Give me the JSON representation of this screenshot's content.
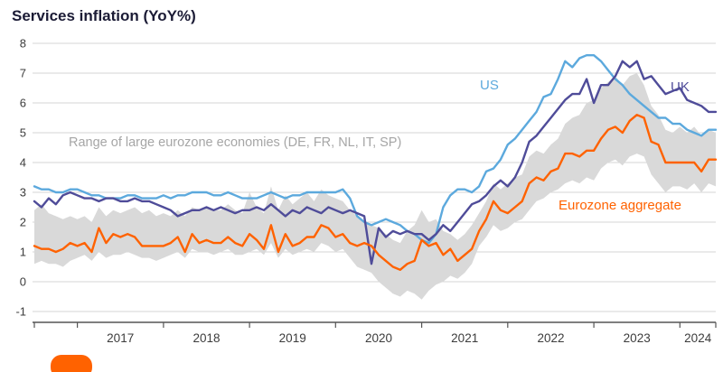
{
  "chart_data": {
    "type": "line",
    "title": "Services inflation (YoY%)",
    "x_start": "2016-07",
    "x_start_month": 7,
    "x_months": 96,
    "x_tick_labels": [
      "2017",
      "2018",
      "2019",
      "2020",
      "2021",
      "2022",
      "2023",
      "2024"
    ],
    "ylim": [
      -1,
      8
    ],
    "y_ticks": [
      -1,
      0,
      1,
      2,
      3,
      4,
      5,
      6,
      7,
      8
    ],
    "grid": "horizontal",
    "legend_position": "direct-labels-on-chart",
    "colors": {
      "grid": "#d6d6d6",
      "axis": "#555555",
      "axis_text": "#3c3c3c",
      "logo": "#ff6200"
    },
    "band": {
      "name": "Range of large eurozone economies (DE, FR, NL, IT, SP)",
      "color": "#d9d9d9",
      "min": [
        0.6,
        0.7,
        0.6,
        0.6,
        0.5,
        0.7,
        0.8,
        0.9,
        0.7,
        1.0,
        0.8,
        0.9,
        0.9,
        1.0,
        0.9,
        0.8,
        0.8,
        0.7,
        0.8,
        0.9,
        1.0,
        0.8,
        1.1,
        1.0,
        1.0,
        0.9,
        1.0,
        1.1,
        0.9,
        0.9,
        1.0,
        1.1,
        0.9,
        1.3,
        0.8,
        1.1,
        0.9,
        1.0,
        1.1,
        1.0,
        1.3,
        1.2,
        1.0,
        1.1,
        0.8,
        0.5,
        0.4,
        0.3,
        0.0,
        -0.2,
        -0.4,
        -0.5,
        -0.3,
        -0.4,
        -0.6,
        -0.3,
        -0.1,
        0.0,
        0.2,
        0.1,
        0.3,
        0.6,
        1.2,
        1.5,
        1.9,
        1.7,
        1.8,
        2.0,
        2.1,
        2.4,
        2.7,
        2.8,
        3.0,
        3.1,
        3.3,
        3.4,
        3.3,
        3.5,
        3.4,
        3.8,
        4.0,
        4.1,
        3.9,
        4.2,
        4.3,
        4.2,
        3.6,
        3.3,
        3.0,
        3.2,
        3.2,
        3.1,
        3.3,
        3.0,
        3.3,
        3.2
      ],
      "max": [
        2.4,
        2.6,
        2.3,
        2.2,
        2.1,
        2.2,
        2.1,
        2.2,
        2.0,
        2.5,
        2.2,
        2.4,
        2.3,
        2.4,
        2.5,
        2.3,
        2.4,
        2.2,
        2.3,
        2.2,
        2.4,
        2.2,
        2.5,
        2.4,
        2.5,
        2.4,
        2.4,
        2.6,
        2.4,
        2.3,
        3.0,
        2.5,
        2.3,
        3.2,
        2.4,
        2.9,
        2.6,
        2.8,
        3.0,
        2.7,
        3.1,
        2.9,
        2.8,
        2.7,
        2.4,
        2.2,
        2.0,
        1.9,
        1.8,
        1.6,
        1.4,
        1.3,
        1.7,
        1.9,
        2.4,
        2.0,
        2.1,
        1.7,
        1.6,
        1.4,
        1.6,
        1.9,
        2.3,
        2.7,
        3.3,
        3.1,
        3.3,
        3.5,
        3.6,
        4.2,
        4.4,
        4.3,
        4.6,
        4.8,
        5.3,
        5.5,
        5.6,
        6.0,
        6.1,
        6.5,
        6.7,
        6.9,
        6.6,
        6.9,
        7.0,
        6.6,
        5.9,
        5.6,
        5.1,
        5.0,
        5.2,
        5.0,
        5.2,
        4.9,
        5.1,
        5.0
      ]
    },
    "series": [
      {
        "name": "US",
        "color": "#5ca9dd",
        "values": [
          3.2,
          3.1,
          3.1,
          3.0,
          3.0,
          3.1,
          3.1,
          3.0,
          2.9,
          2.9,
          2.8,
          2.8,
          2.8,
          2.9,
          2.9,
          2.8,
          2.8,
          2.8,
          2.9,
          2.8,
          2.9,
          2.9,
          3.0,
          3.0,
          3.0,
          2.9,
          2.9,
          3.0,
          2.9,
          2.8,
          2.8,
          2.8,
          2.9,
          3.0,
          2.9,
          2.8,
          2.9,
          2.9,
          3.0,
          3.0,
          3.0,
          3.0,
          3.0,
          3.1,
          2.8,
          2.2,
          2.0,
          1.9,
          2.0,
          2.1,
          2.0,
          1.9,
          1.7,
          1.6,
          1.4,
          1.3,
          1.6,
          2.5,
          2.9,
          3.1,
          3.1,
          3.0,
          3.2,
          3.7,
          3.8,
          4.1,
          4.6,
          4.8,
          5.1,
          5.4,
          5.7,
          6.2,
          6.3,
          6.8,
          7.4,
          7.2,
          7.5,
          7.6,
          7.6,
          7.4,
          7.1,
          6.8,
          6.6,
          6.3,
          6.1,
          5.9,
          5.7,
          5.5,
          5.5,
          5.3,
          5.3,
          5.1,
          5.0,
          4.9,
          5.1,
          5.1
        ]
      },
      {
        "name": "UK",
        "color": "#4f4c99",
        "values": [
          2.7,
          2.5,
          2.8,
          2.6,
          2.9,
          3.0,
          2.9,
          2.8,
          2.8,
          2.7,
          2.8,
          2.8,
          2.7,
          2.7,
          2.8,
          2.7,
          2.7,
          2.6,
          2.5,
          2.4,
          2.2,
          2.3,
          2.4,
          2.4,
          2.5,
          2.4,
          2.5,
          2.4,
          2.3,
          2.4,
          2.4,
          2.5,
          2.4,
          2.6,
          2.4,
          2.2,
          2.4,
          2.3,
          2.5,
          2.4,
          2.3,
          2.5,
          2.4,
          2.3,
          2.4,
          2.3,
          2.2,
          0.6,
          1.8,
          1.5,
          1.7,
          1.6,
          1.7,
          1.6,
          1.6,
          1.4,
          1.6,
          1.9,
          1.7,
          2.0,
          2.3,
          2.6,
          2.7,
          2.9,
          3.2,
          3.4,
          3.2,
          3.5,
          4.0,
          4.7,
          4.9,
          5.2,
          5.5,
          5.8,
          6.1,
          6.3,
          6.3,
          6.8,
          6.0,
          6.6,
          6.6,
          6.9,
          7.4,
          7.2,
          7.4,
          6.8,
          6.9,
          6.6,
          6.3,
          6.4,
          6.5,
          6.1,
          6.0,
          5.9,
          5.7,
          5.7
        ]
      },
      {
        "name": "Eurozone aggregate",
        "color": "#ff6200",
        "values": [
          1.2,
          1.1,
          1.1,
          1.0,
          1.1,
          1.3,
          1.2,
          1.3,
          1.0,
          1.8,
          1.3,
          1.6,
          1.5,
          1.6,
          1.5,
          1.2,
          1.2,
          1.2,
          1.2,
          1.3,
          1.5,
          1.0,
          1.6,
          1.3,
          1.4,
          1.3,
          1.3,
          1.5,
          1.3,
          1.2,
          1.6,
          1.4,
          1.1,
          1.9,
          1.0,
          1.6,
          1.2,
          1.3,
          1.5,
          1.5,
          1.9,
          1.8,
          1.5,
          1.6,
          1.3,
          1.2,
          1.3,
          1.2,
          0.9,
          0.7,
          0.5,
          0.4,
          0.6,
          0.7,
          1.4,
          1.2,
          1.3,
          0.9,
          1.1,
          0.7,
          0.9,
          1.1,
          1.7,
          2.1,
          2.7,
          2.4,
          2.3,
          2.5,
          2.7,
          3.3,
          3.5,
          3.4,
          3.7,
          3.8,
          4.3,
          4.3,
          4.2,
          4.4,
          4.4,
          4.8,
          5.1,
          5.2,
          5.0,
          5.4,
          5.6,
          5.5,
          4.7,
          4.6,
          4.0,
          4.0,
          4.0,
          4.0,
          4.0,
          3.7,
          4.1,
          4.1
        ]
      }
    ],
    "labels": {
      "us": {
        "text": "US",
        "color": "#5ca9dd"
      },
      "uk": {
        "text": "UK",
        "color": "#4f4c99"
      },
      "range": {
        "text": "Range of large eurozone economies (DE, FR, NL, IT, SP)",
        "color": "#a6a6a6"
      },
      "eurozone": {
        "text": "Eurozone aggregate",
        "color": "#ff6200"
      }
    }
  }
}
